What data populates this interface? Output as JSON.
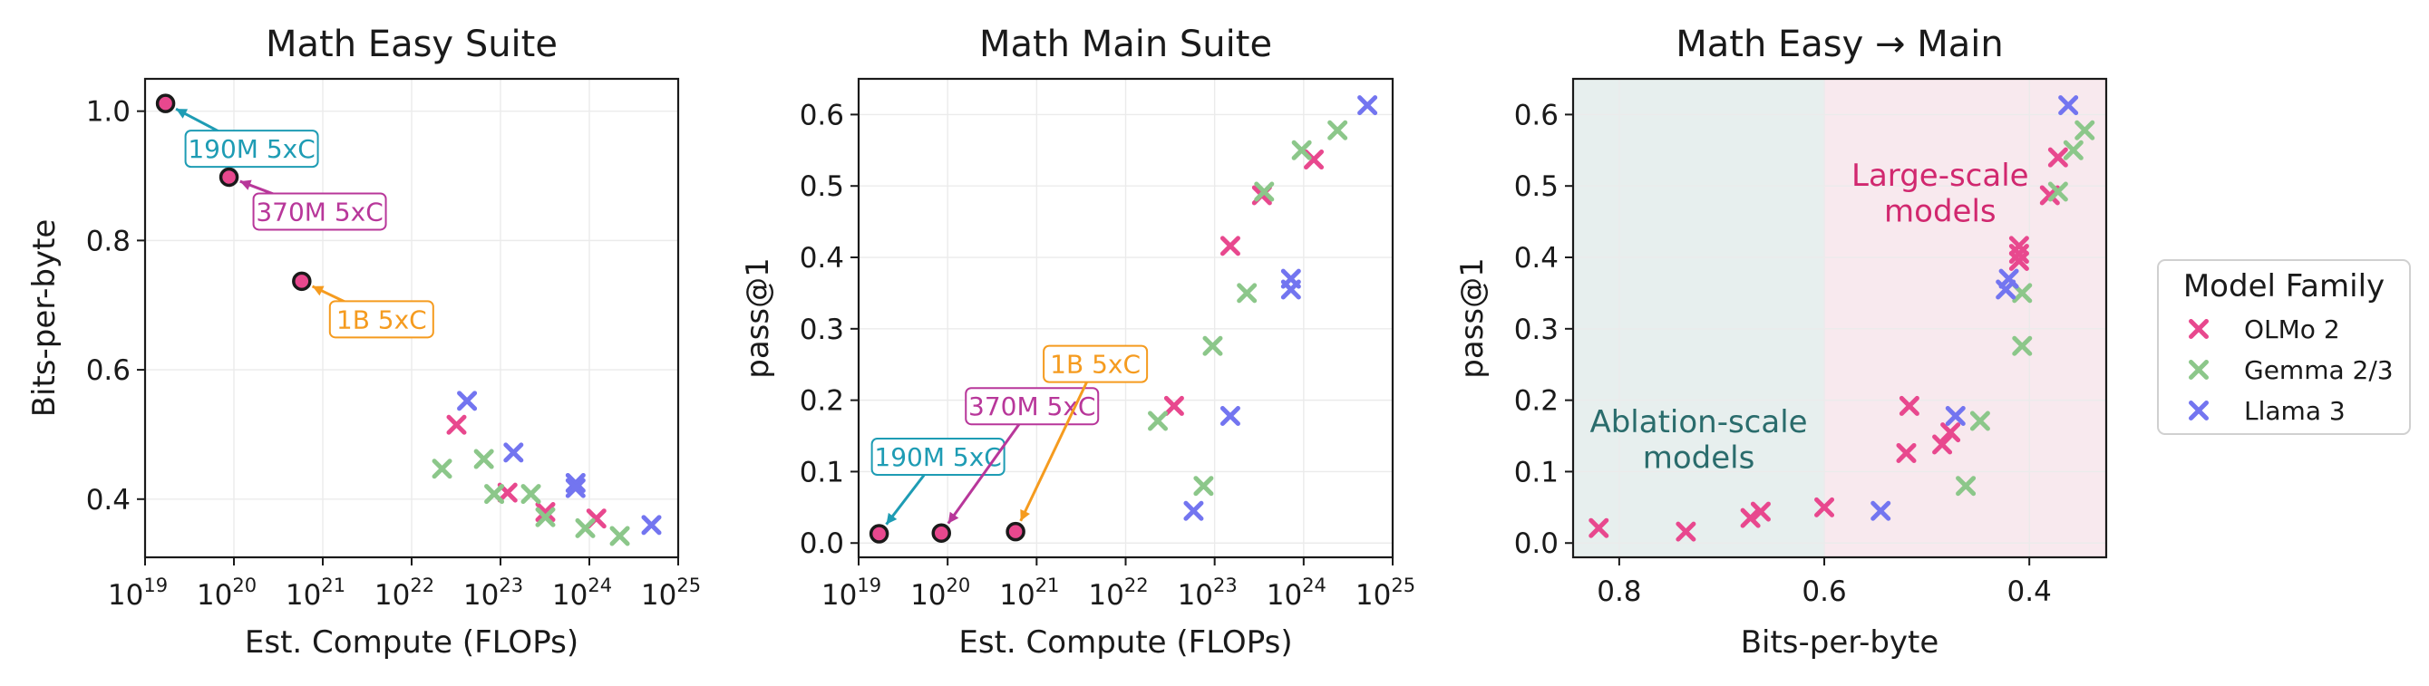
{
  "colors": {
    "OLMo 2": "#e8488e",
    "Gemma 2/3": "#8cc78a",
    "Llama 3": "#7375f0",
    "190M 5xC": "#1e9cb4",
    "370M 5xC": "#b8379a",
    "1B 5xC": "#f59b1f",
    "ablation_region_fill": "#e7efee",
    "large_region_fill": "#f8e9ee",
    "ablation_region_text": "#2a6c6c",
    "large_region_text": "#d1286f"
  },
  "legend": {
    "title": "Model Family",
    "placement": "right",
    "entries": [
      "OLMo 2",
      "Gemma 2/3",
      "Llama 3"
    ]
  },
  "chart_data": [
    {
      "type": "scatter",
      "title": "Math Easy Suite",
      "xlabel": "Est. Compute (FLOPs)",
      "ylabel": "Bits-per-byte",
      "xscale": "log",
      "xlim": [
        1e+19,
        1e+25
      ],
      "ylim": [
        0.31,
        1.05
      ],
      "xticks": [
        1e+19,
        1e+20,
        1e+21,
        1e+22,
        1e+23,
        1e+24,
        1e+25
      ],
      "xtick_labels": [
        [
          "10",
          "19"
        ],
        [
          "10",
          "20"
        ],
        [
          "10",
          "21"
        ],
        [
          "10",
          "22"
        ],
        [
          "10",
          "23"
        ],
        [
          "10",
          "24"
        ],
        [
          "10",
          "25"
        ]
      ],
      "yticks": [
        0.4,
        0.6,
        0.8,
        1.0
      ],
      "ytick_labels": [
        "0.4",
        "0.6",
        "0.8",
        "1.0"
      ],
      "grid": true,
      "series": [
        {
          "name": "OLMo 2",
          "points": [
            [
              3.2e+22,
              0.515
            ],
            [
              1.2e+23,
              0.41
            ],
            [
              3.2e+23,
              0.38
            ],
            [
              1.2e+24,
              0.37
            ]
          ]
        },
        {
          "name": "Gemma 2/3",
          "points": [
            [
              2.2e+22,
              0.447
            ],
            [
              6.5e+22,
              0.462
            ],
            [
              8.5e+22,
              0.408
            ],
            [
              2.2e+23,
              0.408
            ],
            [
              3.2e+23,
              0.372
            ],
            [
              9e+23,
              0.355
            ],
            [
              2.2e+24,
              0.343
            ]
          ]
        },
        {
          "name": "Llama 3",
          "points": [
            [
              4.2e+22,
              0.552
            ],
            [
              1.4e+23,
              0.472
            ],
            [
              7e+23,
              0.425
            ],
            [
              7e+23,
              0.417
            ],
            [
              5e+24,
              0.36
            ]
          ]
        }
      ],
      "highlight": [
        {
          "label": "190M 5xC",
          "x": 1.7e+19,
          "y": 1.012
        },
        {
          "label": "370M 5xC",
          "x": 8.8e+19,
          "y": 0.898
        },
        {
          "label": "1B 5xC",
          "x": 5.8e+20,
          "y": 0.737
        }
      ]
    },
    {
      "type": "scatter",
      "title": "Math Main Suite",
      "xlabel": "Est. Compute (FLOPs)",
      "ylabel": "pass@1",
      "xscale": "log",
      "xlim": [
        1e+19,
        1e+25
      ],
      "ylim": [
        -0.02,
        0.65
      ],
      "xticks": [
        1e+19,
        1e+20,
        1e+21,
        1e+22,
        1e+23,
        1e+24,
        1e+25
      ],
      "xtick_labels": [
        [
          "10",
          "19"
        ],
        [
          "10",
          "20"
        ],
        [
          "10",
          "21"
        ],
        [
          "10",
          "22"
        ],
        [
          "10",
          "23"
        ],
        [
          "10",
          "24"
        ],
        [
          "10",
          "25"
        ]
      ],
      "yticks": [
        0.0,
        0.1,
        0.2,
        0.3,
        0.4,
        0.5,
        0.6
      ],
      "ytick_labels": [
        "0.0",
        "0.1",
        "0.2",
        "0.3",
        "0.4",
        "0.5",
        "0.6"
      ],
      "grid": true,
      "series": [
        {
          "name": "OLMo 2",
          "points": [
            [
              3.5e+22,
              0.192
            ],
            [
              1.5e+23,
              0.416
            ],
            [
              3.4e+23,
              0.487
            ],
            [
              1.3e+24,
              0.537
            ]
          ]
        },
        {
          "name": "Gemma 2/3",
          "points": [
            [
              2.3e+22,
              0.171
            ],
            [
              7.5e+22,
              0.08
            ],
            [
              9.5e+22,
              0.276
            ],
            [
              2.3e+23,
              0.35
            ],
            [
              3.6e+23,
              0.492
            ],
            [
              9.5e+23,
              0.55
            ],
            [
              2.4e+24,
              0.578
            ]
          ]
        },
        {
          "name": "Llama 3",
          "points": [
            [
              5.8e+22,
              0.045
            ],
            [
              1.5e+23,
              0.178
            ],
            [
              7.2e+23,
              0.37
            ],
            [
              7.2e+23,
              0.355
            ],
            [
              5.2e+24,
              0.613
            ]
          ]
        }
      ],
      "highlight": [
        {
          "label": "190M 5xC",
          "x": 1.7e+19,
          "y": 0.013
        },
        {
          "label": "370M 5xC",
          "x": 8.5e+19,
          "y": 0.014
        },
        {
          "label": "1B 5xC",
          "x": 5.8e+20,
          "y": 0.016
        }
      ]
    },
    {
      "type": "scatter",
      "title": "Math Easy → Main",
      "xlabel": "Bits-per-byte",
      "ylabel": "pass@1",
      "xlim": [
        0.845,
        0.325
      ],
      "ylim": [
        -0.02,
        0.65
      ],
      "xticks": [
        0.8,
        0.6,
        0.4
      ],
      "xtick_labels": [
        "0.8",
        "0.6",
        "0.4"
      ],
      "yticks": [
        0.0,
        0.1,
        0.2,
        0.3,
        0.4,
        0.5,
        0.6
      ],
      "ytick_labels": [
        "0.0",
        "0.1",
        "0.2",
        "0.3",
        "0.4",
        "0.5",
        "0.6"
      ],
      "grid": true,
      "regions": [
        {
          "label": [
            "Ablation-scale",
            "models"
          ],
          "x_from": 0.845,
          "x_to": 0.6
        },
        {
          "label": [
            "Large-scale",
            "models"
          ],
          "x_from": 0.6,
          "x_to": 0.325
        }
      ],
      "series": [
        {
          "name": "OLMo 2",
          "points": [
            [
              0.82,
              0.021
            ],
            [
              0.735,
              0.016
            ],
            [
              0.672,
              0.035
            ],
            [
              0.662,
              0.044
            ],
            [
              0.6,
              0.05
            ],
            [
              0.517,
              0.192
            ],
            [
              0.52,
              0.126
            ],
            [
              0.485,
              0.138
            ],
            [
              0.477,
              0.155
            ],
            [
              0.41,
              0.416
            ],
            [
              0.41,
              0.405
            ],
            [
              0.41,
              0.395
            ],
            [
              0.38,
              0.487
            ],
            [
              0.372,
              0.54
            ]
          ]
        },
        {
          "name": "Gemma 2/3",
          "points": [
            [
              0.462,
              0.08
            ],
            [
              0.448,
              0.171
            ],
            [
              0.407,
              0.35
            ],
            [
              0.407,
              0.276
            ],
            [
              0.372,
              0.492
            ],
            [
              0.357,
              0.55
            ],
            [
              0.346,
              0.578
            ]
          ]
        },
        {
          "name": "Llama 3",
          "points": [
            [
              0.545,
              0.045
            ],
            [
              0.472,
              0.178
            ],
            [
              0.42,
              0.37
            ],
            [
              0.423,
              0.355
            ],
            [
              0.362,
              0.613
            ]
          ]
        }
      ]
    }
  ]
}
